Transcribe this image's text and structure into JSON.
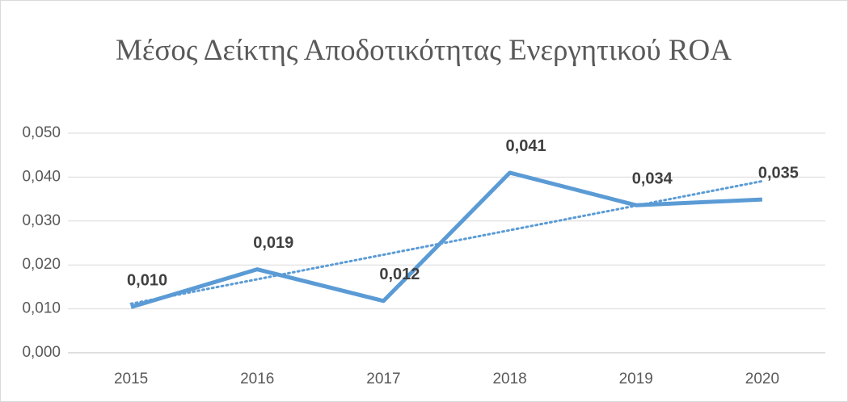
{
  "chart_data": {
    "type": "line",
    "title": "Μέσος Δείκτης Αποδοτικότητας Ενεργητικού ROA",
    "categories": [
      "2015",
      "2016",
      "2017",
      "2018",
      "2019",
      "2020"
    ],
    "series": [
      {
        "color": "#5b9bd5",
        "values": [
          0.0104,
          0.019,
          0.0118,
          0.041,
          0.0336,
          0.0349
        ],
        "value_labels": [
          "0,010",
          "0,019",
          "0,012",
          "0,041",
          "0,034",
          "0,035"
        ]
      }
    ],
    "trendline": "linear",
    "ylim": [
      0,
      0.05
    ],
    "yticks": [
      {
        "value": 0,
        "label": "0,000"
      },
      {
        "value": 0.01,
        "label": "0,010"
      },
      {
        "value": 0.02,
        "label": "0,020"
      },
      {
        "value": 0.03,
        "label": "0,030"
      },
      {
        "value": 0.04,
        "label": "0,040"
      },
      {
        "value": 0.05,
        "label": "0,050"
      }
    ],
    "grid": true
  }
}
